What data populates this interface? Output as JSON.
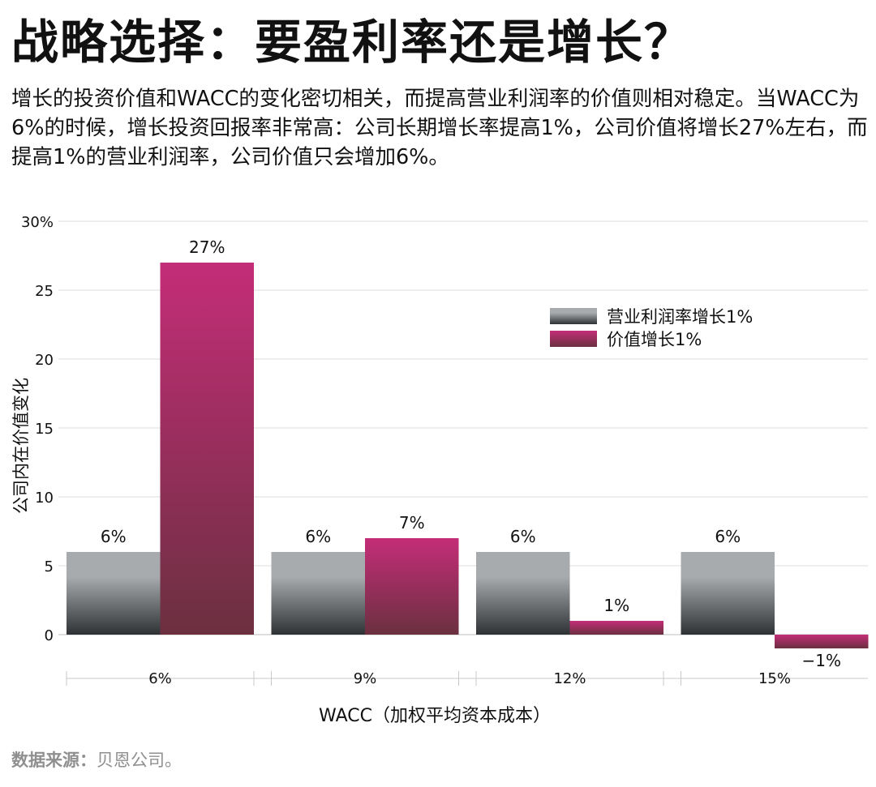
{
  "header": {
    "title": "战略选择：要盈利率还是增长？",
    "subtitle": "增长的投资价值和WACC的变化密切相关，而提高营业利润率的价值则相对稳定。当WACC为6%的时候，增长投资回报率非常高：公司长期增长率提高1%，公司价值将增长27%左右，而提高1%的营业利润率，公司价值只会增加6%。"
  },
  "footer": {
    "source_label": "数据来源：",
    "source_text": "贝恩公司。"
  },
  "chart_data": {
    "type": "bar",
    "xlabel": "WACC（加权平均资本成本）",
    "ylabel": "公司内在价值变化",
    "categories": [
      "6%",
      "9%",
      "12%",
      "15%"
    ],
    "ylim": [
      -1,
      30
    ],
    "yticks": [
      0,
      5,
      10,
      15,
      20,
      25,
      30
    ],
    "ytick_labels": [
      "0",
      "5",
      "10",
      "15",
      "20",
      "25",
      "30%"
    ],
    "grid": true,
    "legend_position": "top-right",
    "series": [
      {
        "name": "营业利润率增长1%",
        "values": [
          6,
          6,
          6,
          6
        ],
        "labels": [
          "6%",
          "6%",
          "6%",
          "6%"
        ],
        "color_top": "#a7abae",
        "color_bottom": "#2f3235"
      },
      {
        "name": "价值增长1%",
        "values": [
          27,
          7,
          1,
          -1
        ],
        "labels": [
          "27%",
          "7%",
          "1%",
          "−1%"
        ],
        "color_top": "#c42d78",
        "color_bottom": "#6b3040"
      }
    ]
  }
}
